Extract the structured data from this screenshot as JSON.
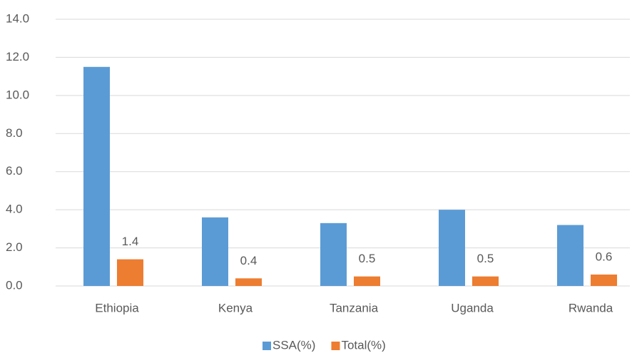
{
  "chart_data": {
    "type": "bar",
    "categories": [
      "Ethiopia",
      "Kenya",
      "Tanzania",
      "Uganda",
      "Rwanda"
    ],
    "series": [
      {
        "name": "SSA(%)",
        "color": "#5b9bd5",
        "values": [
          11.5,
          3.6,
          3.3,
          4.0,
          3.2
        ]
      },
      {
        "name": "Total(%)",
        "color": "#ed7d31",
        "values": [
          1.4,
          0.4,
          0.5,
          0.5,
          0.6
        ],
        "data_labels": true
      }
    ],
    "ylim": [
      0,
      14
    ],
    "yticks": [
      {
        "value": 0,
        "label": "0.0"
      },
      {
        "value": 2,
        "label": "2.0"
      },
      {
        "value": 4,
        "label": "4.0"
      },
      {
        "value": 6,
        "label": "6.0"
      },
      {
        "value": 8,
        "label": "8.0"
      },
      {
        "value": 10,
        "label": "10.0"
      },
      {
        "value": 12,
        "label": "12.0"
      },
      {
        "value": 14,
        "label": "14.0"
      }
    ],
    "grid": true,
    "legend": "bottom"
  }
}
